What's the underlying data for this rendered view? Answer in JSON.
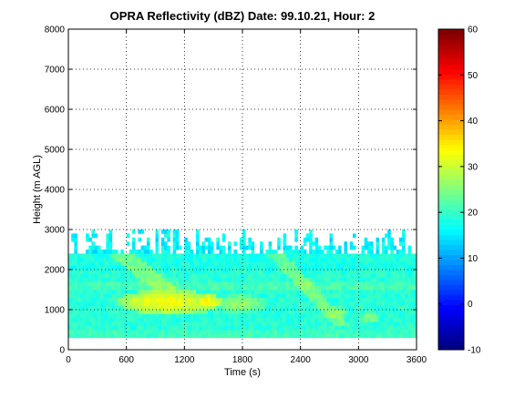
{
  "chart_data": {
    "type": "heatmap",
    "title": "OPRA Reflectivity (dBZ)  Date: 99.10.21, Hour: 2",
    "xlabel": "Time (s)",
    "ylabel": "Height (m AGL)",
    "xlim": [
      0,
      3600
    ],
    "ylim": [
      0,
      8000
    ],
    "x_ticks": [
      "0",
      "600",
      "1200",
      "1800",
      "2400",
      "3000",
      "3600"
    ],
    "y_ticks": [
      "0",
      "1000",
      "2000",
      "3000",
      "4000",
      "5000",
      "6000",
      "7000",
      "8000"
    ],
    "grid": "dotted",
    "colorbar": {
      "colormap": "jet",
      "clim": [
        -10,
        60
      ],
      "ticks": [
        "-10",
        "0",
        "10",
        "20",
        "30",
        "40",
        "50",
        "60"
      ]
    },
    "data_extent": {
      "time_range_s": [
        0,
        3600
      ],
      "height_range_m": [
        300,
        3000
      ]
    },
    "echo_layers": [
      {
        "height_m": [
          300,
          2400
        ],
        "time_s": [
          0,
          3600
        ],
        "dbz": 19
      },
      {
        "height_m": [
          2400,
          3000
        ],
        "time_s": [
          0,
          3600
        ],
        "dbz": 17,
        "note": "broken top"
      }
    ],
    "echo_cores": [
      {
        "time_s": [
          600,
          1400
        ],
        "height_m": [
          900,
          1400
        ],
        "dbz": 33
      },
      {
        "time_s": [
          1300,
          1550
        ],
        "height_m": [
          1000,
          1300
        ],
        "dbz": 34
      },
      {
        "time_s": [
          1550,
          2000
        ],
        "height_m": [
          900,
          1300
        ],
        "dbz": 27
      },
      {
        "time_s": [
          2600,
          2850
        ],
        "height_m": [
          700,
          1000
        ],
        "dbz": 27
      },
      {
        "time_s": [
          3000,
          3200
        ],
        "height_m": [
          600,
          900
        ],
        "dbz": 25
      }
    ]
  }
}
